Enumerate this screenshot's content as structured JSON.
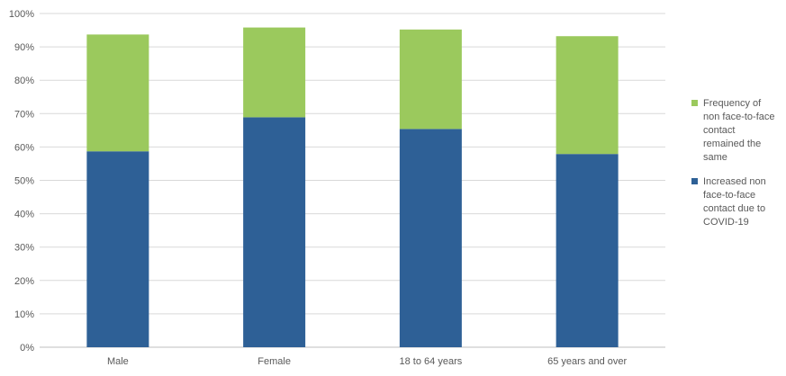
{
  "chart_data": {
    "type": "bar",
    "stacked": true,
    "categories": [
      "Male",
      "Female",
      "18 to 64 years",
      "65 years and over"
    ],
    "series": [
      {
        "name": "Increased non face-to-face contact due to COVID-19",
        "name_lines": [
          "Increased non",
          "face-to-face",
          "contact due to",
          "COVID-19"
        ],
        "color": "#2e6096",
        "values": [
          58.7,
          68.9,
          65.4,
          57.9
        ]
      },
      {
        "name": "Frequency of non face-to-face contact remained the same",
        "name_lines": [
          "Frequency of",
          "non face-to-face",
          "contact",
          "remained the",
          "same"
        ],
        "color": "#9bc95d",
        "values": [
          35.0,
          26.9,
          29.8,
          35.3
        ]
      }
    ],
    "ylim": [
      0,
      100
    ],
    "yticks": [
      "0%",
      "10%",
      "20%",
      "30%",
      "40%",
      "50%",
      "60%",
      "70%",
      "80%",
      "90%",
      "100%"
    ],
    "grid": true,
    "legend_position": "right",
    "title": "",
    "xlabel": "",
    "ylabel": ""
  }
}
